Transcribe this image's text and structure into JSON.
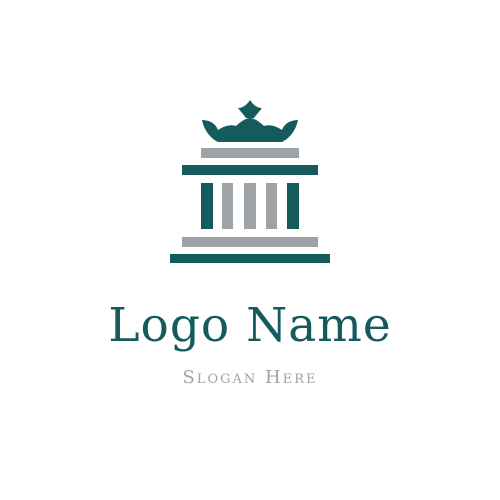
{
  "logo": {
    "name": "Logo Name",
    "slogan": "Slogan Here"
  },
  "icons": {
    "crown": "crown-icon",
    "building": "classical-building-icon"
  },
  "colors": {
    "primary": "#155b5b",
    "secondary": "#9ea3a8",
    "background": "#ffffff"
  }
}
